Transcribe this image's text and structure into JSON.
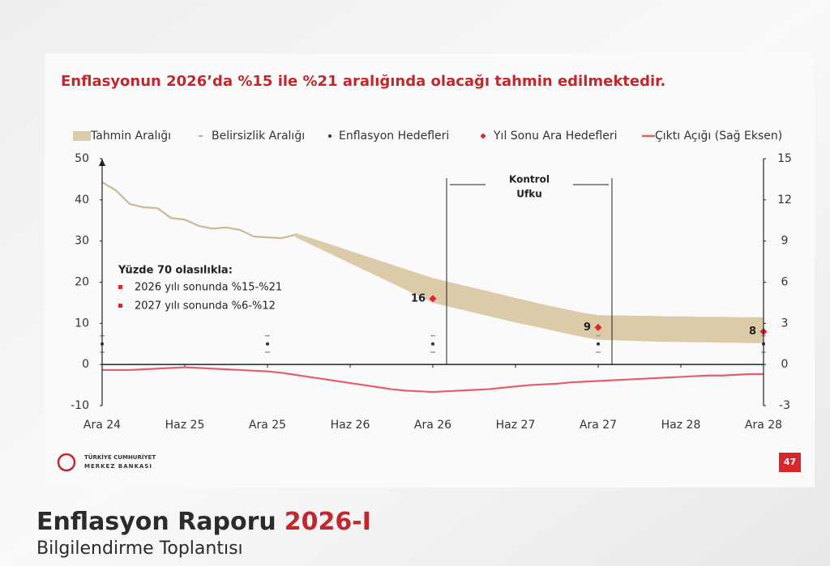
{
  "slide": {
    "title": "Enflasyonun 2026’da %15 ile %21 aralığında olacağı tahmin edilmektedir.",
    "logo": [
      "TÜRKİYE CUMHURİYET",
      "MERKEZ BANKASI"
    ],
    "page": "47"
  },
  "footer": {
    "title": "Enflasyon Raporu",
    "edition": "2026-I",
    "subtitle": "Bilgilendirme Toplantısı"
  },
  "chart_data": {
    "type": "line",
    "categories": [
      "Ara 24",
      null,
      null,
      null,
      null,
      null,
      "Haz 25",
      null,
      null,
      null,
      null,
      null,
      "Ara 25",
      null,
      null,
      null,
      null,
      null,
      "Haz 26",
      null,
      null,
      null,
      null,
      null,
      "Ara 26",
      null,
      null,
      null,
      null,
      null,
      "Haz 27",
      null,
      null,
      null,
      null,
      null,
      "Ara 27",
      null,
      null,
      null,
      null,
      null,
      "Haz 28",
      null,
      null,
      null,
      null,
      null,
      "Ara 28"
    ],
    "ylim": [
      -10,
      50
    ],
    "yticks": [
      -10,
      0,
      10,
      20,
      30,
      40,
      50
    ],
    "y2lim": [
      -3,
      15
    ],
    "y2ticks": [
      -3,
      0,
      3,
      6,
      9,
      12,
      15
    ],
    "annotation": [
      "Kontrol",
      "Ufku"
    ],
    "note": {
      "title": "Yüzde 70 olasılıkla:",
      "items": [
        "2026 yılı sonunda %15-%21",
        "2027 yılı sonunda %6-%12"
      ]
    },
    "series": [
      {
        "name": "Tahmin Aralığı",
        "style": "band",
        "color": "#dccba9",
        "lower": [
          null,
          null,
          null,
          null,
          null,
          null,
          null,
          null,
          null,
          null,
          null,
          null,
          null,
          null,
          31,
          29.4,
          27.8,
          26.2,
          24.6,
          23,
          21.4,
          19.8,
          18.2,
          16.6,
          15,
          14.2,
          13.4,
          12.6,
          11.8,
          11,
          10.2,
          9.5,
          8.8,
          8,
          7.3,
          6.6,
          6,
          5.9,
          5.8,
          5.7,
          5.6,
          5.5,
          5.5,
          5.4,
          5.4,
          5.3,
          5.3,
          5.2,
          5.2
        ],
        "upper": [
          null,
          null,
          null,
          null,
          null,
          null,
          null,
          null,
          null,
          null,
          null,
          null,
          null,
          null,
          32,
          30.9,
          29.8,
          28.7,
          27.6,
          26.5,
          25.4,
          24.3,
          23.2,
          22.1,
          21,
          20.2,
          19.4,
          18.6,
          17.8,
          17,
          16.2,
          15.4,
          14.6,
          13.9,
          13.2,
          12.5,
          12,
          11.9,
          11.9,
          11.8,
          11.8,
          11.7,
          11.7,
          11.6,
          11.6,
          11.6,
          11.5,
          11.5,
          11.5
        ]
      },
      {
        "name": "Belirsizlik Aralığı",
        "style": "range",
        "color": "#9a9a9a",
        "lower": [
          3,
          null,
          null,
          null,
          null,
          null,
          null,
          null,
          null,
          null,
          null,
          null,
          3,
          null,
          null,
          null,
          null,
          null,
          null,
          null,
          null,
          null,
          null,
          null,
          3,
          null,
          null,
          null,
          null,
          null,
          null,
          null,
          null,
          null,
          null,
          null,
          3,
          null,
          null,
          null,
          null,
          null,
          null,
          null,
          null,
          null,
          null,
          null,
          3
        ],
        "upper": [
          7,
          null,
          null,
          null,
          null,
          null,
          null,
          null,
          null,
          null,
          null,
          null,
          7,
          null,
          null,
          null,
          null,
          null,
          null,
          null,
          null,
          null,
          null,
          null,
          7,
          null,
          null,
          null,
          null,
          null,
          null,
          null,
          null,
          null,
          null,
          null,
          7,
          null,
          null,
          null,
          null,
          null,
          null,
          null,
          null,
          null,
          null,
          null,
          7
        ]
      },
      {
        "name": "Enflasyon Hedefleri",
        "style": "dot",
        "color": "#333333",
        "values": [
          5,
          null,
          null,
          null,
          null,
          null,
          null,
          null,
          null,
          null,
          null,
          null,
          5,
          null,
          null,
          null,
          null,
          null,
          null,
          null,
          null,
          null,
          null,
          null,
          5,
          null,
          null,
          null,
          null,
          null,
          null,
          null,
          null,
          null,
          null,
          null,
          5,
          null,
          null,
          null,
          null,
          null,
          null,
          null,
          null,
          null,
          null,
          null,
          5
        ]
      },
      {
        "name": "Yıl Sonu Ara Hedefleri",
        "style": "diamond",
        "color": "#e0242b",
        "values": [
          null,
          null,
          null,
          null,
          null,
          null,
          null,
          null,
          null,
          null,
          null,
          null,
          null,
          null,
          null,
          null,
          null,
          null,
          null,
          null,
          null,
          null,
          null,
          null,
          16,
          null,
          null,
          null,
          null,
          null,
          null,
          null,
          null,
          null,
          null,
          null,
          9,
          null,
          null,
          null,
          null,
          null,
          null,
          null,
          null,
          null,
          null,
          null,
          8
        ]
      },
      {
        "name": "Çıktı Açığı (Sağ Eksen)",
        "style": "line",
        "axis": "y2",
        "color": "#e2606a",
        "values": [
          -0.4,
          -0.4,
          -0.4,
          -0.35,
          -0.3,
          -0.25,
          -0.2,
          -0.25,
          -0.3,
          -0.35,
          -0.4,
          -0.45,
          -0.5,
          -0.6,
          -0.75,
          -0.9,
          -1.05,
          -1.2,
          -1.35,
          -1.5,
          -1.65,
          -1.8,
          -1.9,
          -1.95,
          -2.0,
          -1.95,
          -1.9,
          -1.85,
          -1.8,
          -1.7,
          -1.6,
          -1.5,
          -1.45,
          -1.4,
          -1.3,
          -1.25,
          -1.2,
          -1.15,
          -1.1,
          -1.05,
          -1.0,
          -0.95,
          -0.9,
          -0.85,
          -0.8,
          -0.8,
          -0.75,
          -0.7,
          -0.7
        ]
      },
      {
        "style": "line",
        "color": "#cdb893",
        "values": [
          44.3,
          42.3,
          39,
          38.2,
          38,
          35.6,
          35.2,
          33.7,
          33,
          33.3,
          32.7,
          31.1,
          30.9,
          30.7,
          31.5,
          null,
          null,
          null,
          null,
          null,
          null,
          null,
          null,
          null,
          null,
          null,
          null,
          null,
          null,
          null,
          null,
          null,
          null,
          null,
          null,
          null,
          null,
          null,
          null,
          null,
          null,
          null,
          null,
          null,
          null,
          null,
          null,
          null,
          null
        ]
      }
    ]
  }
}
